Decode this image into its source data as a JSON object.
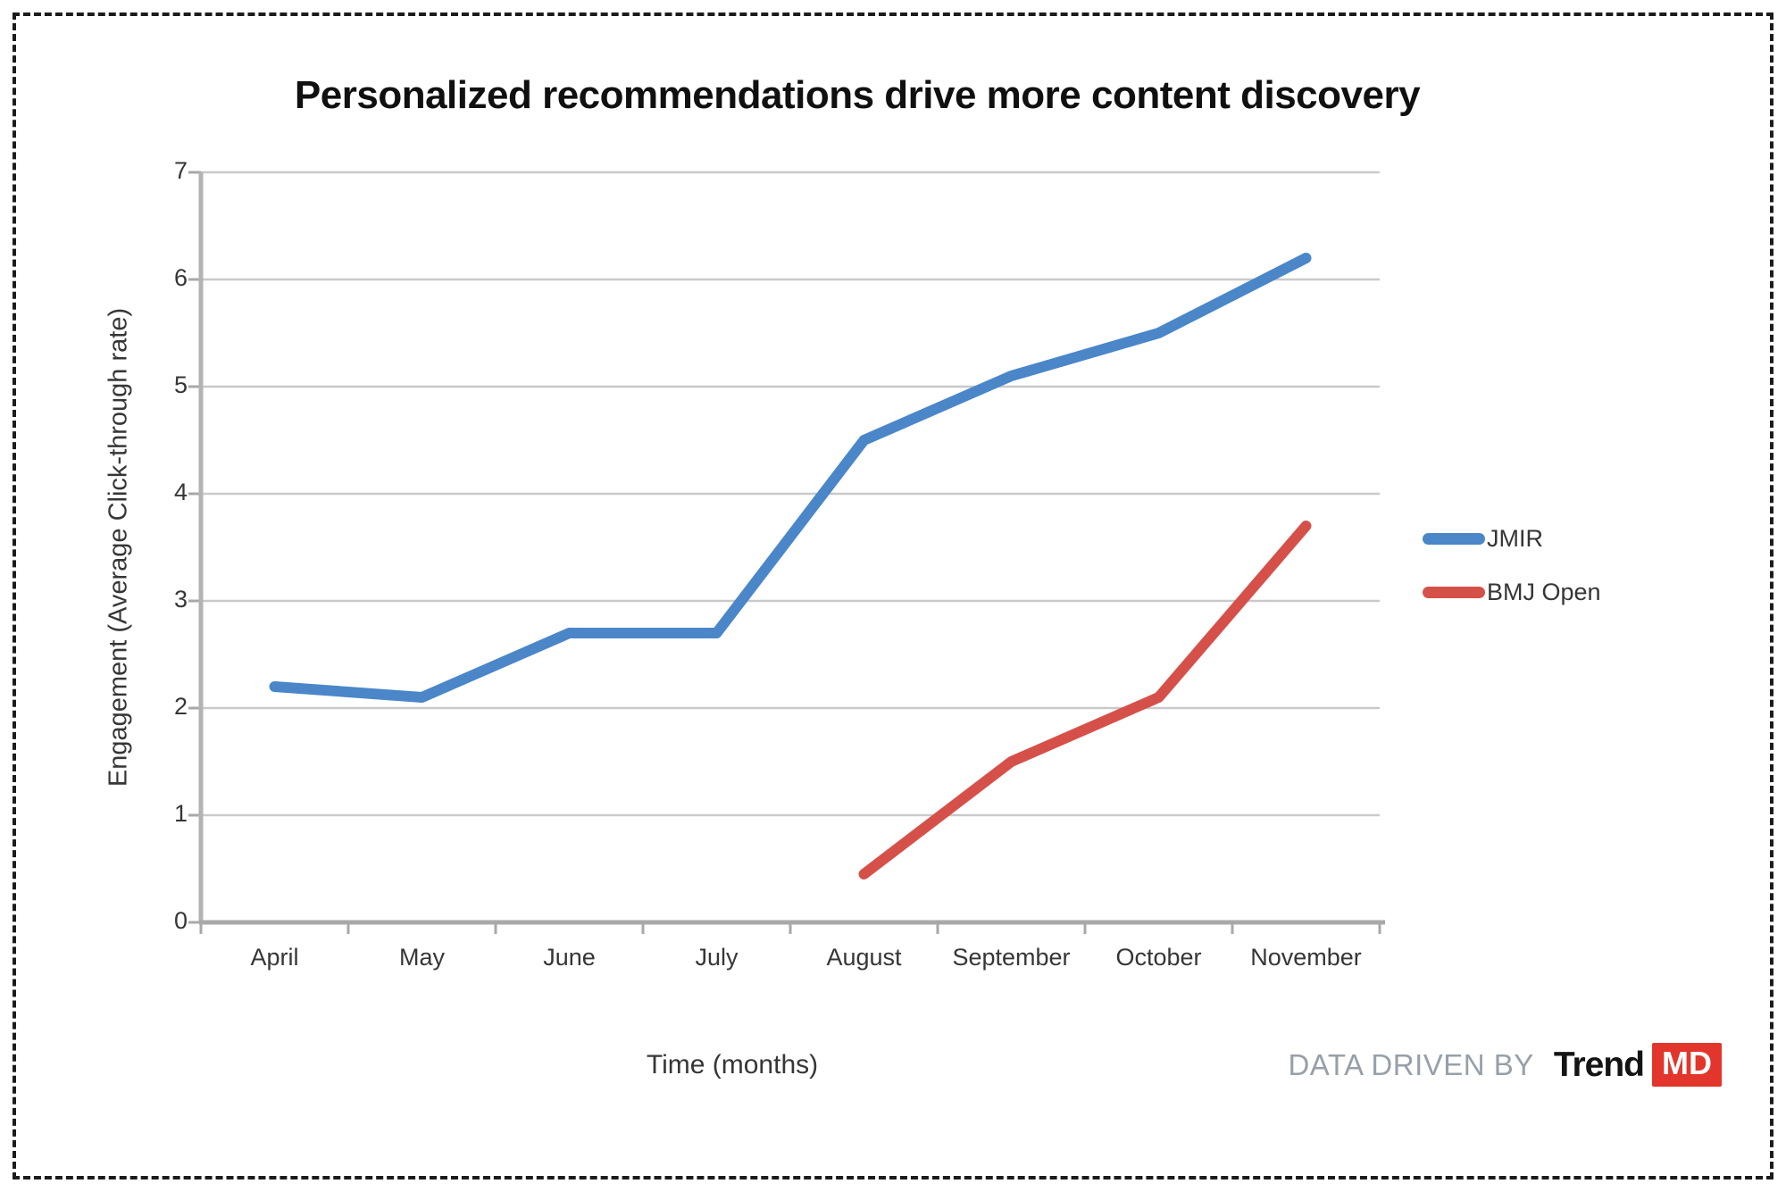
{
  "chart_data": {
    "type": "line",
    "title": "Personalized recommendations drive more content discovery",
    "xlabel": "Time (months)",
    "ylabel": "Engagement (Average Click-through rate)",
    "categories": [
      "April",
      "May",
      "June",
      "July",
      "August",
      "September",
      "October",
      "November"
    ],
    "series": [
      {
        "name": "JMIR",
        "color": "#4a86c8",
        "values": [
          2.2,
          2.1,
          2.7,
          2.7,
          4.5,
          5.1,
          5.5,
          6.2
        ]
      },
      {
        "name": "BMJ Open",
        "color": "#d6504a",
        "values": [
          null,
          null,
          null,
          null,
          0.45,
          1.5,
          2.1,
          3.7
        ]
      }
    ],
    "ylim": [
      0,
      7
    ],
    "yticks": [
      0,
      1,
      2,
      3,
      4,
      5,
      6,
      7
    ],
    "grid": true,
    "gridline_color": "#c9c9c9",
    "axis_color": "#a8a8a8",
    "legend_position": "right"
  },
  "footer": {
    "attribution": "DATA DRIVEN BY",
    "logo": {
      "part1": "Trend",
      "part2": "MD",
      "accent": "#e2352b"
    }
  }
}
